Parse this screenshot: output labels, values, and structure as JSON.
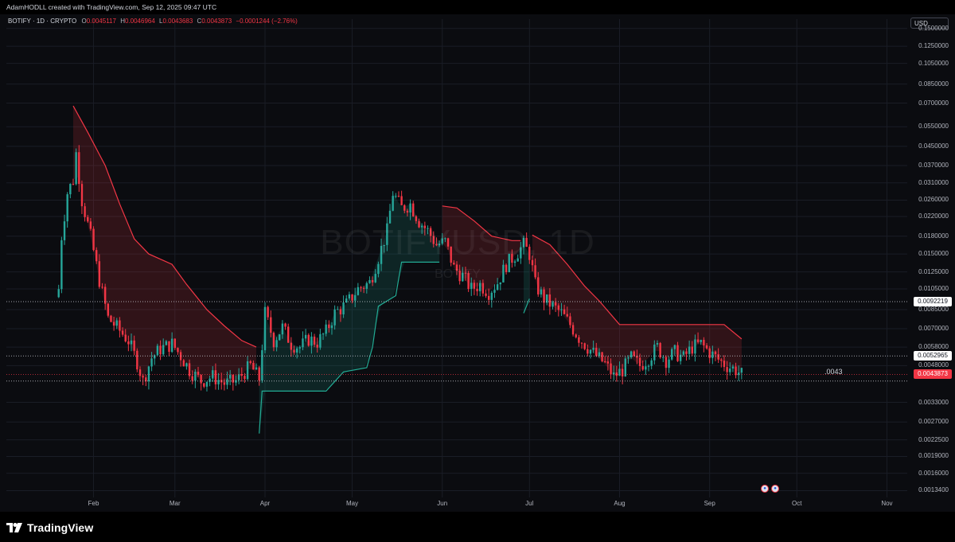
{
  "header": {
    "author": "AdamHODLL",
    "text": "AdamHODLL created with TradingView.com, Sep 12, 2025 09:47 UTC"
  },
  "legend": {
    "symbol": "BOTIFY · 1D · CRYPTO",
    "o_label": "O",
    "o_value": "0.0045117",
    "h_label": "H",
    "h_value": "0.0046964",
    "l_label": "L",
    "l_value": "0.0043683",
    "c_label": "C",
    "c_value": "0.0043873",
    "change": "−0.0001244 (−2.76%)"
  },
  "currency": "USD",
  "watermark": {
    "main": "BOTIFYUSD, 1D",
    "sub": "BOTIFY"
  },
  "annotation": ".0043",
  "price_badges": [
    {
      "value": "0.0092219",
      "style": "white"
    },
    {
      "value": "0.0052965",
      "style": "white"
    },
    {
      "value": "0.0043873",
      "style": "red"
    }
  ],
  "footer": {
    "logo_text": "TradingView"
  },
  "colors": {
    "background": "#0b0c10",
    "up": "#26a69a",
    "down": "#f23645",
    "band_red": "#f23645",
    "band_green": "#22ab94",
    "text": "#b2b5be"
  },
  "chart_data": {
    "type": "candlestick",
    "symbol": "BOTIFYUSD",
    "interval": "1D",
    "y_scale": "log",
    "ylim": [
      0.00125,
      0.165
    ],
    "xlim": [
      "2025-01-02",
      "2025-11-08"
    ],
    "y_ticks": [
      "0.1500000",
      "0.1250000",
      "0.1050000",
      "0.0850000",
      "0.0700000",
      "0.0550000",
      "0.0450000",
      "0.0370000",
      "0.0310000",
      "0.0260000",
      "0.0220000",
      "0.0180000",
      "0.0150000",
      "0.0125000",
      "0.0105000",
      "0.0085000",
      "0.0070000",
      "0.0058000",
      "0.0048000",
      "0.0033000",
      "0.0027000",
      "0.0022500",
      "0.0019000",
      "0.0016000",
      "0.0013400"
    ],
    "x_ticks": [
      {
        "label": "Feb",
        "date": "2025-02-01"
      },
      {
        "label": "Mar",
        "date": "2025-03-01"
      },
      {
        "label": "Apr",
        "date": "2025-04-01"
      },
      {
        "label": "May",
        "date": "2025-05-01"
      },
      {
        "label": "Jun",
        "date": "2025-06-01"
      },
      {
        "label": "Jul",
        "date": "2025-07-01"
      },
      {
        "label": "Aug",
        "date": "2025-08-01"
      },
      {
        "label": "Sep",
        "date": "2025-09-01"
      },
      {
        "label": "Oct",
        "date": "2025-10-01"
      },
      {
        "label": "Nov",
        "date": "2025-11-01"
      }
    ],
    "horizontal_lines": [
      0.0092219,
      0.0052965,
      0.0043873,
      0.0041
    ],
    "close_path": [
      {
        "date": "2025-01-20",
        "close": 0.0105
      },
      {
        "date": "2025-01-21",
        "close": 0.018
      },
      {
        "date": "2025-01-23",
        "close": 0.028
      },
      {
        "date": "2025-01-25",
        "close": 0.032
      },
      {
        "date": "2025-01-26",
        "close": 0.042
      },
      {
        "date": "2025-01-28",
        "close": 0.026
      },
      {
        "date": "2025-01-31",
        "close": 0.018
      },
      {
        "date": "2025-02-03",
        "close": 0.0115
      },
      {
        "date": "2025-02-06",
        "close": 0.0078
      },
      {
        "date": "2025-02-09",
        "close": 0.0071
      },
      {
        "date": "2025-02-13",
        "close": 0.0062
      },
      {
        "date": "2025-02-16",
        "close": 0.005
      },
      {
        "date": "2025-02-18",
        "close": 0.0041
      },
      {
        "date": "2025-02-21",
        "close": 0.0052
      },
      {
        "date": "2025-02-24",
        "close": 0.0057
      },
      {
        "date": "2025-02-28",
        "close": 0.006
      },
      {
        "date": "2025-03-03",
        "close": 0.0053
      },
      {
        "date": "2025-03-06",
        "close": 0.0046
      },
      {
        "date": "2025-03-10",
        "close": 0.0041
      },
      {
        "date": "2025-03-14",
        "close": 0.0043
      },
      {
        "date": "2025-03-18",
        "close": 0.004
      },
      {
        "date": "2025-03-22",
        "close": 0.0041
      },
      {
        "date": "2025-03-27",
        "close": 0.0048
      },
      {
        "date": "2025-03-30",
        "close": 0.0042
      },
      {
        "date": "2025-04-01",
        "close": 0.0082
      },
      {
        "date": "2025-04-04",
        "close": 0.0062
      },
      {
        "date": "2025-04-07",
        "close": 0.0071
      },
      {
        "date": "2025-04-10",
        "close": 0.006
      },
      {
        "date": "2025-04-13",
        "close": 0.0058
      },
      {
        "date": "2025-04-16",
        "close": 0.0063
      },
      {
        "date": "2025-04-19",
        "close": 0.0061
      },
      {
        "date": "2025-04-22",
        "close": 0.0068
      },
      {
        "date": "2025-04-25",
        "close": 0.0082
      },
      {
        "date": "2025-04-29",
        "close": 0.009
      },
      {
        "date": "2025-05-03",
        "close": 0.0105
      },
      {
        "date": "2025-05-07",
        "close": 0.0112
      },
      {
        "date": "2025-05-10",
        "close": 0.0145
      },
      {
        "date": "2025-05-13",
        "close": 0.019
      },
      {
        "date": "2025-05-15",
        "close": 0.028
      },
      {
        "date": "2025-05-18",
        "close": 0.024
      },
      {
        "date": "2025-05-21",
        "close": 0.025
      },
      {
        "date": "2025-05-24",
        "close": 0.021
      },
      {
        "date": "2025-05-27",
        "close": 0.019
      },
      {
        "date": "2025-05-30",
        "close": 0.0165
      },
      {
        "date": "2025-06-02",
        "close": 0.017
      },
      {
        "date": "2025-06-05",
        "close": 0.013
      },
      {
        "date": "2025-06-08",
        "close": 0.012
      },
      {
        "date": "2025-06-11",
        "close": 0.0105
      },
      {
        "date": "2025-06-14",
        "close": 0.011
      },
      {
        "date": "2025-06-17",
        "close": 0.0102
      },
      {
        "date": "2025-06-20",
        "close": 0.0112
      },
      {
        "date": "2025-06-23",
        "close": 0.0135
      },
      {
        "date": "2025-06-26",
        "close": 0.0148
      },
      {
        "date": "2025-06-29",
        "close": 0.0165
      },
      {
        "date": "2025-07-01",
        "close": 0.015
      },
      {
        "date": "2025-07-03",
        "close": 0.011
      },
      {
        "date": "2025-07-06",
        "close": 0.0095
      },
      {
        "date": "2025-07-09",
        "close": 0.0088
      },
      {
        "date": "2025-07-12",
        "close": 0.0082
      },
      {
        "date": "2025-07-15",
        "close": 0.0073
      },
      {
        "date": "2025-07-18",
        "close": 0.0064
      },
      {
        "date": "2025-07-21",
        "close": 0.0058
      },
      {
        "date": "2025-07-24",
        "close": 0.0053
      },
      {
        "date": "2025-07-27",
        "close": 0.0049
      },
      {
        "date": "2025-07-30",
        "close": 0.0043
      },
      {
        "date": "2025-08-02",
        "close": 0.0046
      },
      {
        "date": "2025-08-05",
        "close": 0.0052
      },
      {
        "date": "2025-08-08",
        "close": 0.0048
      },
      {
        "date": "2025-08-11",
        "close": 0.0052
      },
      {
        "date": "2025-08-14",
        "close": 0.0058
      },
      {
        "date": "2025-08-17",
        "close": 0.0051
      },
      {
        "date": "2025-08-20",
        "close": 0.0055
      },
      {
        "date": "2025-08-23",
        "close": 0.0052
      },
      {
        "date": "2025-08-26",
        "close": 0.0058
      },
      {
        "date": "2025-08-29",
        "close": 0.006
      },
      {
        "date": "2025-09-01",
        "close": 0.0055
      },
      {
        "date": "2025-09-04",
        "close": 0.0051
      },
      {
        "date": "2025-09-07",
        "close": 0.0048
      },
      {
        "date": "2025-09-10",
        "close": 0.0046
      },
      {
        "date": "2025-09-12",
        "close": 0.0043873
      }
    ],
    "supertrend": [
      {
        "date": "2025-01-25",
        "value": 0.068,
        "trend": "down"
      },
      {
        "date": "2025-01-30",
        "value": 0.052,
        "trend": "down"
      },
      {
        "date": "2025-02-05",
        "value": 0.037,
        "trend": "down"
      },
      {
        "date": "2025-02-10",
        "value": 0.025,
        "trend": "down"
      },
      {
        "date": "2025-02-15",
        "value": 0.0175,
        "trend": "down"
      },
      {
        "date": "2025-02-20",
        "value": 0.015,
        "trend": "down"
      },
      {
        "date": "2025-02-28",
        "value": 0.0135,
        "trend": "down"
      },
      {
        "date": "2025-03-05",
        "value": 0.011,
        "trend": "down"
      },
      {
        "date": "2025-03-12",
        "value": 0.0085,
        "trend": "down"
      },
      {
        "date": "2025-03-18",
        "value": 0.0072,
        "trend": "down"
      },
      {
        "date": "2025-03-24",
        "value": 0.0062,
        "trend": "down"
      },
      {
        "date": "2025-03-29",
        "value": 0.0058,
        "trend": "down"
      },
      {
        "date": "2025-03-30",
        "value": 0.0024,
        "trend": "up"
      },
      {
        "date": "2025-03-31",
        "value": 0.0037,
        "trend": "up"
      },
      {
        "date": "2025-04-22",
        "value": 0.0037,
        "trend": "up"
      },
      {
        "date": "2025-04-28",
        "value": 0.0045,
        "trend": "up"
      },
      {
        "date": "2025-05-06",
        "value": 0.0047,
        "trend": "up"
      },
      {
        "date": "2025-05-08",
        "value": 0.0058,
        "trend": "up"
      },
      {
        "date": "2025-05-10",
        "value": 0.0088,
        "trend": "up"
      },
      {
        "date": "2025-05-16",
        "value": 0.0098,
        "trend": "up"
      },
      {
        "date": "2025-05-18",
        "value": 0.0138,
        "trend": "up"
      },
      {
        "date": "2025-05-31",
        "value": 0.0138,
        "trend": "up"
      },
      {
        "date": "2025-06-01",
        "value": 0.0245,
        "trend": "down"
      },
      {
        "date": "2025-06-06",
        "value": 0.024,
        "trend": "down"
      },
      {
        "date": "2025-06-12",
        "value": 0.021,
        "trend": "down"
      },
      {
        "date": "2025-06-18",
        "value": 0.018,
        "trend": "down"
      },
      {
        "date": "2025-06-25",
        "value": 0.0172,
        "trend": "down"
      },
      {
        "date": "2025-06-28",
        "value": 0.0172,
        "trend": "down"
      },
      {
        "date": "2025-06-29",
        "value": 0.0082,
        "trend": "up"
      },
      {
        "date": "2025-07-01",
        "value": 0.0095,
        "trend": "up"
      },
      {
        "date": "2025-07-02",
        "value": 0.0182,
        "trend": "down"
      },
      {
        "date": "2025-07-08",
        "value": 0.0165,
        "trend": "down"
      },
      {
        "date": "2025-07-14",
        "value": 0.0135,
        "trend": "down"
      },
      {
        "date": "2025-07-20",
        "value": 0.0108,
        "trend": "down"
      },
      {
        "date": "2025-07-25",
        "value": 0.0093,
        "trend": "down"
      },
      {
        "date": "2025-08-01",
        "value": 0.0073,
        "trend": "down"
      },
      {
        "date": "2025-09-06",
        "value": 0.0073,
        "trend": "down"
      },
      {
        "date": "2025-09-12",
        "value": 0.0063,
        "trend": "down"
      }
    ]
  }
}
